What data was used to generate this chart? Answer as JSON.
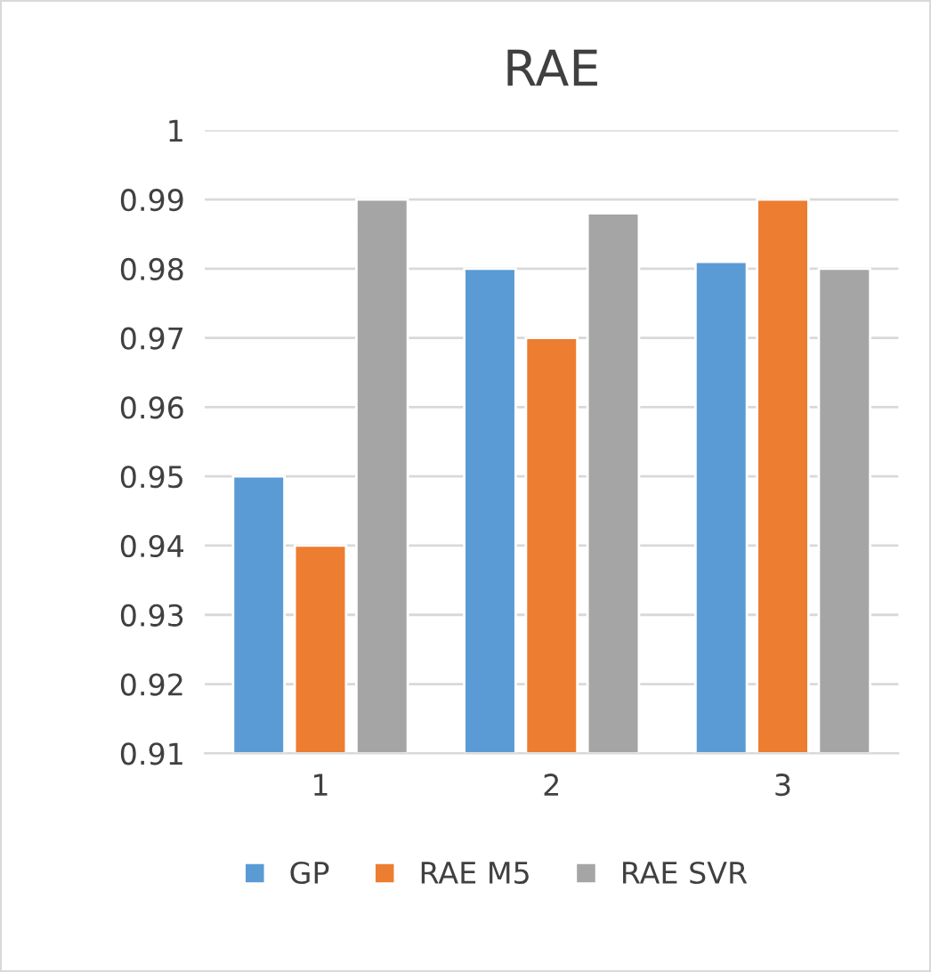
{
  "chart_data": {
    "type": "bar",
    "title": "RAE",
    "categories": [
      "1",
      "2",
      "3"
    ],
    "series": [
      {
        "name": "GP",
        "color": "#5b9bd5",
        "values": [
          0.95,
          0.98,
          0.981
        ]
      },
      {
        "name": "RAE M5",
        "color": "#ed7d31",
        "values": [
          0.94,
          0.97,
          0.99
        ]
      },
      {
        "name": "RAE SVR",
        "color": "#a5a5a5",
        "values": [
          0.99,
          0.988,
          0.98
        ]
      }
    ],
    "ylim": [
      0.91,
      1
    ],
    "yticks": [
      0.91,
      0.92,
      0.93,
      0.94,
      0.95,
      0.96,
      0.97,
      0.98,
      0.99,
      1
    ],
    "grid": "y",
    "legend": "bottom"
  }
}
